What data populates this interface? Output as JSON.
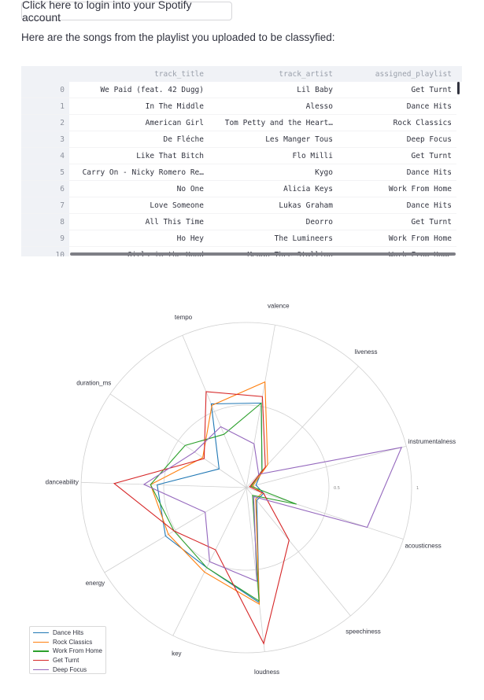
{
  "login_button_label": "Click here to login into your Spotify account",
  "intro_text": "Here are the songs from the playlist you uploaded to be classyfied:",
  "table": {
    "columns": [
      "track_title",
      "track_artist",
      "assigned_playlist"
    ],
    "rows": [
      {
        "index": "0",
        "track_title": "We Paid (feat. 42 Dugg)",
        "track_artist": "Lil Baby",
        "assigned_playlist": "Get Turnt"
      },
      {
        "index": "1",
        "track_title": "In The Middle",
        "track_artist": "Alesso",
        "assigned_playlist": "Dance Hits"
      },
      {
        "index": "2",
        "track_title": "American Girl",
        "track_artist": "Tom Petty and the Heart…",
        "assigned_playlist": "Rock Classics"
      },
      {
        "index": "3",
        "track_title": "De Fléche",
        "track_artist": "Les Manger Tous",
        "assigned_playlist": "Deep Focus"
      },
      {
        "index": "4",
        "track_title": "Like That Bitch",
        "track_artist": "Flo Milli",
        "assigned_playlist": "Get Turnt"
      },
      {
        "index": "5",
        "track_title": "Carry On - Nicky Romero Re…",
        "track_artist": "Kygo",
        "assigned_playlist": "Dance Hits"
      },
      {
        "index": "6",
        "track_title": "No One",
        "track_artist": "Alicia Keys",
        "assigned_playlist": "Work From Home"
      },
      {
        "index": "7",
        "track_title": "Love Someone",
        "track_artist": "Lukas Graham",
        "assigned_playlist": "Dance Hits"
      },
      {
        "index": "8",
        "track_title": "All This Time",
        "track_artist": "Deorro",
        "assigned_playlist": "Get Turnt"
      },
      {
        "index": "9",
        "track_title": "Ho Hey",
        "track_artist": "The Lumineers",
        "assigned_playlist": "Work From Home"
      },
      {
        "index": "10",
        "track_title": "Girls in the Hood",
        "track_artist": "Megan Thee Stallion",
        "assigned_playlist": "Work From Home"
      }
    ]
  },
  "chart_data": {
    "type": "radar",
    "axes": [
      "valence",
      "liveness",
      "instrumentalness",
      "acousticness",
      "speechiness",
      "loudness",
      "key",
      "energy",
      "danceability",
      "duration_ms",
      "tempo"
    ],
    "radial_ticks": [
      "0.5",
      "1"
    ],
    "grid": true,
    "legend_position": "bottom-left",
    "series": [
      {
        "name": "Dance Hits",
        "color": "#1f77b4",
        "values": [
          0.52,
          0.14,
          0.06,
          0.11,
          0.1,
          0.7,
          0.54,
          0.57,
          0.54,
          0.2,
          0.55
        ]
      },
      {
        "name": "Rock Classics",
        "color": "#ff7f0e",
        "values": [
          0.65,
          0.19,
          0.04,
          0.1,
          0.09,
          0.71,
          0.57,
          0.55,
          0.58,
          0.32,
          0.54
        ]
      },
      {
        "name": "Work From Home",
        "color": "#2ca02c",
        "values": [
          0.52,
          0.14,
          0.03,
          0.32,
          0.06,
          0.69,
          0.54,
          0.51,
          0.58,
          0.45,
          0.35
        ]
      },
      {
        "name": "Get Turnt",
        "color": "#d62728",
        "values": [
          0.56,
          0.17,
          0.02,
          0.11,
          0.41,
          0.95,
          0.42,
          0.51,
          0.8,
          0.31,
          0.63
        ]
      },
      {
        "name": "Deep Focus",
        "color": "#9467bd",
        "values": [
          0.27,
          0.11,
          0.97,
          0.77,
          0.07,
          0.57,
          0.5,
          0.29,
          0.62,
          0.38,
          0.4
        ]
      }
    ]
  }
}
